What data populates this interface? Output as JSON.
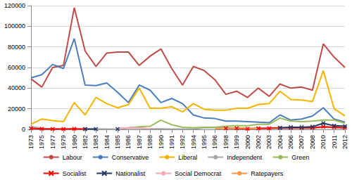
{
  "chart_data": {
    "type": "line",
    "categories": [
      "1973",
      "1975",
      "1977",
      "1979",
      "1980",
      "1982",
      "1983",
      "1984",
      "1985",
      "1986",
      "1987",
      "1988",
      "1990",
      "1991",
      "1992",
      "1994",
      "1995",
      "1996",
      "1998",
      "1999",
      "2000",
      "2002",
      "2003",
      "2004",
      "2006",
      "2007",
      "2008",
      "2010",
      "2011",
      "2012"
    ],
    "series": [
      {
        "name": "Labour",
        "color": "#be4b48",
        "values": [
          49000,
          41000,
          60000,
          62000,
          118000,
          76000,
          61000,
          74000,
          75000,
          75000,
          62000,
          71000,
          78000,
          59000,
          43000,
          61000,
          57000,
          48000,
          34000,
          37000,
          31000,
          40000,
          32000,
          44000,
          40000,
          41000,
          38000,
          83000,
          70000,
          60000
        ]
      },
      {
        "name": "Conservative",
        "color": "#4a7ebb",
        "values": [
          50000,
          53000,
          63000,
          59000,
          88000,
          43000,
          42500,
          45000,
          36000,
          26000,
          43000,
          38000,
          26000,
          30000,
          25000,
          14000,
          11000,
          10500,
          8000,
          8000,
          7500,
          7000,
          6500,
          14000,
          9000,
          10000,
          13000,
          21000,
          10000,
          7000
        ]
      },
      {
        "name": "Liberal",
        "color": "#f5b400",
        "values": [
          5000,
          10000,
          8500,
          7500,
          26000,
          14000,
          31000,
          25000,
          21000,
          24000,
          40000,
          20500,
          20500,
          22000,
          17000,
          25000,
          19500,
          18500,
          18500,
          20500,
          20500,
          24000,
          25000,
          37000,
          29000,
          28500,
          27000,
          57000,
          20000,
          13000
        ]
      },
      {
        "name": "Independent",
        "color": "#a5a5a5",
        "values": [
          2500,
          1000,
          500,
          500,
          300,
          300,
          300,
          300,
          200,
          1000,
          1000,
          500,
          500,
          300,
          300,
          300,
          1500,
          1500,
          1500,
          1000,
          1000,
          1000,
          1500,
          1000,
          1000,
          1000,
          1000,
          2000,
          1500,
          1000
        ]
      },
      {
        "name": "Green",
        "color": "#9bbb59",
        "values": [
          null,
          null,
          null,
          null,
          null,
          null,
          null,
          null,
          null,
          1500,
          2500,
          3000,
          9000,
          4500,
          2000,
          1500,
          2000,
          2000,
          3000,
          3500,
          3500,
          5000,
          5000,
          11000,
          8000,
          7500,
          8000,
          9000,
          9000,
          6000
        ]
      },
      {
        "name": "Socialist",
        "color": "#ff0000",
        "marker": "x",
        "values": [
          1000,
          500,
          300,
          400,
          500,
          300,
          null,
          null,
          null,
          null,
          null,
          null,
          null,
          null,
          null,
          null,
          null,
          null,
          1000,
          1000,
          500,
          1000,
          1000,
          1500,
          1500,
          1500,
          1500,
          2500,
          2000,
          1500
        ]
      },
      {
        "name": "Nationalist",
        "color": "#1f3864",
        "marker": "x",
        "values": [
          null,
          null,
          null,
          null,
          null,
          300,
          300,
          null,
          300,
          null,
          null,
          null,
          null,
          null,
          null,
          null,
          null,
          null,
          null,
          null,
          null,
          null,
          null,
          1500,
          2000,
          2000,
          2500,
          6000,
          3500,
          3000
        ]
      },
      {
        "name": "Social Democrat",
        "color": "#f4a7b9",
        "values": [
          null,
          null,
          null,
          null,
          null,
          null,
          null,
          null,
          1000,
          1500,
          1500,
          500,
          null,
          null,
          null,
          null,
          null,
          null,
          null,
          null,
          null,
          null,
          null,
          null,
          null,
          null,
          null,
          null,
          null,
          null
        ]
      },
      {
        "name": "Ratepayers",
        "color": "#f79646",
        "values": [
          null,
          null,
          null,
          null,
          null,
          null,
          null,
          null,
          null,
          null,
          null,
          null,
          null,
          null,
          null,
          null,
          null,
          500,
          1000,
          1500,
          1000,
          500,
          null,
          null,
          null,
          null,
          null,
          null,
          null,
          null
        ]
      }
    ],
    "ylim": [
      0,
      120000
    ],
    "yticks": [
      0,
      20000,
      40000,
      60000,
      80000,
      100000,
      120000
    ],
    "grid": true,
    "legend": "bottom"
  }
}
